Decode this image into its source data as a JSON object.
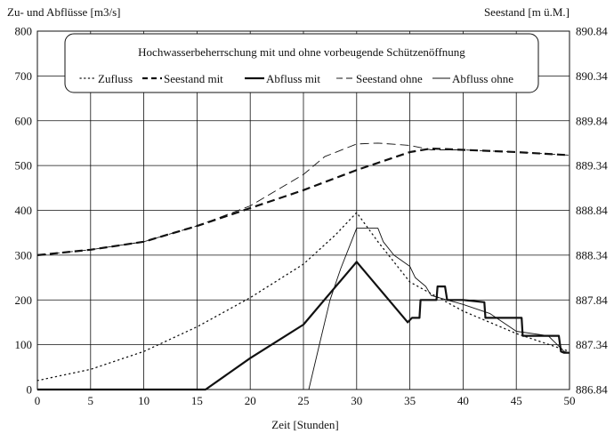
{
  "chart_data": {
    "type": "line",
    "title": "Hochwasserbeherrschung mit und ohne vorbeugende Schützenöffnung",
    "xlabel": "Zeit  [Stunden]",
    "ylabel_left": "Zu- und Abflüsse  [m3/s]",
    "ylabel_right": "Seestand  [m ü.M.]",
    "xlim": [
      0,
      50
    ],
    "ylim_left": [
      0,
      800
    ],
    "ylim_right": [
      886.84,
      890.84
    ],
    "x_ticks": [
      "0",
      "5",
      "10",
      "15",
      "20",
      "25",
      "30",
      "35",
      "40",
      "45",
      "50"
    ],
    "y_ticks_left": [
      "0",
      "100",
      "200",
      "300",
      "400",
      "500",
      "600",
      "700",
      "800"
    ],
    "y_ticks_right": [
      "886.84",
      "887.34",
      "887.84",
      "888.34",
      "888.84",
      "889.34",
      "889.84",
      "890.34",
      "890.84"
    ],
    "grid": true,
    "legend_position": "top-center",
    "series": [
      {
        "name": "Zufluss",
        "axis": "left",
        "style": "dotted",
        "x": [
          0,
          5,
          10,
          15,
          20,
          25,
          28,
          30,
          32,
          35,
          40,
          45,
          50
        ],
        "y": [
          20,
          45,
          85,
          140,
          205,
          280,
          345,
          395,
          330,
          240,
          175,
          125,
          85
        ]
      },
      {
        "name": "Seestand mit",
        "axis": "left",
        "style": "dashed-bold",
        "x": [
          0,
          5,
          10,
          15,
          20,
          25,
          30,
          35,
          37,
          40,
          45,
          50
        ],
        "y": [
          300,
          312,
          330,
          365,
          405,
          445,
          490,
          530,
          538,
          535,
          530,
          523
        ]
      },
      {
        "name": "Abfluss mit",
        "axis": "left",
        "style": "solid-bold",
        "x": [
          0,
          15.8,
          20,
          25,
          30,
          34.8,
          35.2,
          35.9,
          36,
          37.5,
          37.6,
          38.3,
          38.5,
          40,
          42,
          42.1,
          45.5,
          45.6,
          49,
          49.2,
          49.5,
          50
        ],
        "y": [
          0,
          0,
          70,
          145,
          285,
          150,
          160,
          160,
          200,
          200,
          230,
          230,
          200,
          200,
          195,
          160,
          160,
          120,
          120,
          85,
          82,
          82
        ]
      },
      {
        "name": "Seestand ohne",
        "axis": "left",
        "style": "dashed-thin",
        "x": [
          0,
          5,
          10,
          15,
          20,
          25,
          27,
          30,
          32,
          35,
          37,
          40,
          45,
          50
        ],
        "y": [
          300,
          312,
          330,
          365,
          410,
          480,
          520,
          548,
          550,
          545,
          535,
          535,
          530,
          523
        ]
      },
      {
        "name": "Abfluss ohne",
        "axis": "left",
        "style": "solid-thin",
        "x": [
          25.5,
          26.5,
          27.5,
          28.5,
          29.5,
          30,
          30.5,
          32,
          32.5,
          33.5,
          35,
          35.5,
          36.5,
          37,
          38.5,
          40,
          42.5,
          45,
          48,
          49.5,
          50
        ],
        "y": [
          0,
          100,
          200,
          270,
          330,
          360,
          360,
          360,
          330,
          300,
          275,
          250,
          230,
          210,
          200,
          190,
          170,
          130,
          120,
          85,
          82
        ]
      }
    ]
  }
}
